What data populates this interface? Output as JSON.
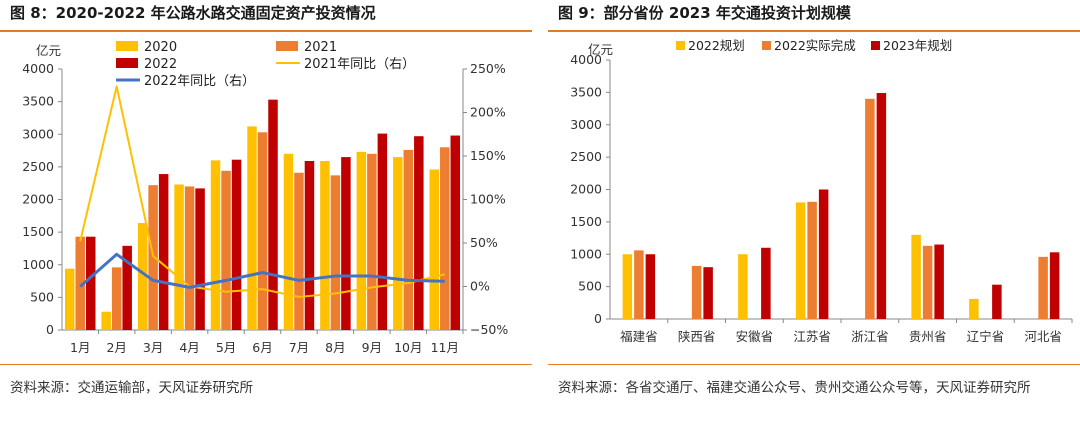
{
  "colors": {
    "accent_rule": "#e07b2a",
    "yellow": "#ffc000",
    "orange": "#ed7d31",
    "red": "#c00000",
    "blue": "#4472c4",
    "line2021": "#ffc000"
  },
  "left": {
    "title": "图 8：2020-2022 年公路水路交通固定资产投资情况",
    "source": "资料来源：交通运输部，天风证券研究所",
    "chart_data": {
      "type": "bar",
      "unit_left": "亿元",
      "categories": [
        "1月",
        "2月",
        "3月",
        "4月",
        "5月",
        "6月",
        "7月",
        "8月",
        "9月",
        "10月",
        "11月"
      ],
      "ylim": [
        0,
        4000
      ],
      "y_ticks": [
        "0",
        "500",
        "1000",
        "1500",
        "2000",
        "2500",
        "3000",
        "3500",
        "4000"
      ],
      "y2lim": [
        -50,
        250
      ],
      "y2_ticks": [
        "−50%",
        "0%",
        "50%",
        "100%",
        "150%",
        "200%",
        "250%"
      ],
      "series": [
        {
          "name": "2020",
          "kind": "bar",
          "color": "#ffc000",
          "values": [
            940,
            280,
            1640,
            2230,
            2600,
            3120,
            2700,
            2590,
            2730,
            2650,
            2460
          ]
        },
        {
          "name": "2021",
          "kind": "bar",
          "color": "#ed7d31",
          "values": [
            1430,
            960,
            2220,
            2200,
            2440,
            3030,
            2410,
            2370,
            2700,
            2760,
            2800
          ]
        },
        {
          "name": "2022",
          "kind": "bar",
          "color": "#c00000",
          "values": [
            1430,
            1290,
            2390,
            2170,
            2610,
            3530,
            2590,
            2650,
            3010,
            2970,
            2980
          ]
        },
        {
          "name": "2021年同比（右）",
          "kind": "line",
          "color": "#ffc000",
          "axis": "right",
          "values": [
            52,
            230,
            35,
            0,
            -6,
            -3,
            -12,
            -8,
            -1,
            4,
            14
          ]
        },
        {
          "name": "2022年同比（右）",
          "kind": "line",
          "color": "#4472c4",
          "axis": "right",
          "values": [
            0,
            37,
            7,
            -1,
            7,
            16,
            7,
            12,
            12,
            7,
            6
          ]
        }
      ],
      "legend_labels": [
        "2020",
        "2021",
        "2022",
        "2021年同比（右）",
        "2022年同比（右）"
      ]
    }
  },
  "right": {
    "title": "图 9：部分省份 2023 年交通投资计划规模",
    "source": "资料来源：各省交通厅、福建交通公众号、贵州交通公众号等，天风证券研究所",
    "chart_data": {
      "type": "bar",
      "unit_left": "亿元",
      "categories": [
        "福建省",
        "陕西省",
        "安徽省",
        "江苏省",
        "浙江省",
        "贵州省",
        "辽宁省",
        "河北省"
      ],
      "ylim": [
        0,
        4000
      ],
      "y_ticks": [
        "0",
        "500",
        "1000",
        "1500",
        "2000",
        "2500",
        "3000",
        "3500",
        "4000"
      ],
      "series": [
        {
          "name": "2022规划",
          "color": "#ffc000",
          "values": [
            1000,
            null,
            1000,
            1800,
            null,
            1300,
            310,
            null
          ]
        },
        {
          "name": "2022实际完成",
          "color": "#ed7d31",
          "values": [
            1060,
            820,
            null,
            1810,
            3400,
            1130,
            null,
            960
          ]
        },
        {
          "name": "2023年规划",
          "color": "#c00000",
          "values": [
            1000,
            800,
            1100,
            2000,
            3490,
            1150,
            530,
            1030
          ]
        }
      ],
      "legend_labels": [
        "2022规划",
        "2022实际完成",
        "2023年规划"
      ]
    }
  }
}
